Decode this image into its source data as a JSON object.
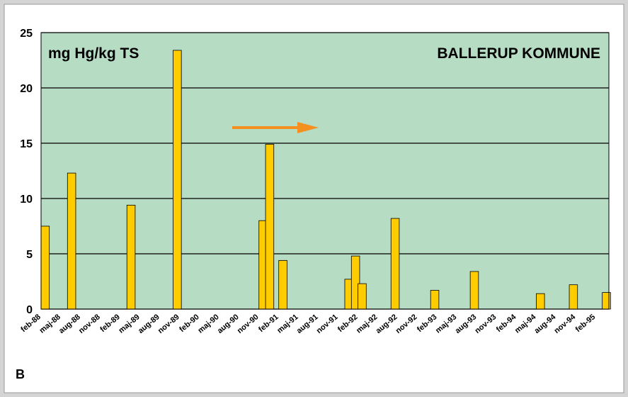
{
  "chart_data": {
    "type": "bar",
    "annotations": [
      "mg Hg/kg TS",
      "BALLERUP KOMMUNE"
    ],
    "panel_label": "B",
    "color": "#ffcc00",
    "plot_color": "#b6dcc3",
    "grid": true,
    "ylim": [
      0,
      25
    ],
    "yticks": [
      0,
      5,
      10,
      15,
      20,
      25
    ],
    "categories": [
      "feb-88",
      null,
      null,
      "maj-88",
      null,
      null,
      "aug-88",
      null,
      null,
      "nov-88",
      null,
      null,
      "feb-89",
      null,
      null,
      "maj-89",
      null,
      null,
      "aug-89",
      null,
      null,
      "nov-89",
      null,
      null,
      "feb-90",
      null,
      null,
      "maj-90",
      null,
      null,
      "aug-90",
      null,
      null,
      "nov-90",
      null,
      null,
      "feb-91",
      null,
      null,
      "maj-91",
      null,
      null,
      "aug-91",
      null,
      null,
      "nov-91",
      null,
      null,
      "feb-92",
      null,
      null,
      "maj-92",
      null,
      null,
      "aug-92",
      null,
      null,
      "nov-92",
      null,
      null,
      "feb-93",
      null,
      null,
      "maj-93",
      null,
      null,
      "aug-93",
      null,
      null,
      "nov-93",
      null,
      null,
      "feb-94",
      null,
      null,
      "maj-94",
      null,
      null,
      "aug-94",
      null,
      null,
      "nov-94",
      null,
      null,
      "feb-95",
      null
    ],
    "values": [
      7.5,
      null,
      null,
      null,
      12.3,
      null,
      null,
      null,
      null,
      null,
      null,
      null,
      null,
      9.4,
      null,
      null,
      null,
      null,
      null,
      null,
      23.4,
      null,
      null,
      null,
      null,
      null,
      null,
      null,
      null,
      null,
      null,
      null,
      null,
      8.0,
      14.9,
      null,
      4.4,
      null,
      null,
      null,
      null,
      null,
      null,
      null,
      null,
      null,
      2.7,
      4.8,
      2.3,
      null,
      null,
      null,
      null,
      8.2,
      null,
      null,
      null,
      null,
      null,
      1.7,
      null,
      null,
      null,
      null,
      null,
      3.4,
      null,
      null,
      null,
      null,
      null,
      null,
      null,
      null,
      null,
      1.4,
      null,
      null,
      null,
      null,
      2.2,
      null,
      null,
      null,
      null,
      1.5
    ]
  }
}
